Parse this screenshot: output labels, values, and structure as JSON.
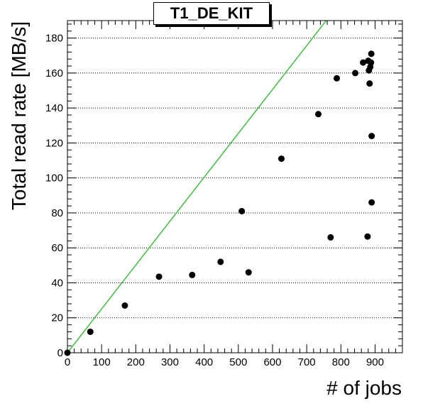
{
  "chart_data": {
    "type": "scatter",
    "title": "T1_DE_KIT",
    "xlabel": "# of jobs",
    "ylabel": "Total read rate [MB/s]",
    "xlim": [
      0,
      980
    ],
    "ylim": [
      0,
      190
    ],
    "x_ticks": [
      0,
      100,
      200,
      300,
      400,
      500,
      600,
      700,
      800,
      900
    ],
    "y_ticks": [
      0,
      20,
      40,
      60,
      80,
      100,
      120,
      140,
      160,
      180
    ],
    "grid": "horizontal dotted",
    "reference_line": {
      "from": [
        0,
        0
      ],
      "to": [
        757,
        190
      ],
      "color": "#44bb44"
    },
    "point_color": "#000000",
    "points": [
      {
        "x": 0,
        "y": 0
      },
      {
        "x": 67,
        "y": 12
      },
      {
        "x": 168,
        "y": 27
      },
      {
        "x": 268,
        "y": 43.5
      },
      {
        "x": 365,
        "y": 44.5
      },
      {
        "x": 448,
        "y": 52
      },
      {
        "x": 510,
        "y": 81
      },
      {
        "x": 530,
        "y": 46
      },
      {
        "x": 626,
        "y": 111
      },
      {
        "x": 734,
        "y": 136.5
      },
      {
        "x": 770,
        "y": 66
      },
      {
        "x": 788,
        "y": 157
      },
      {
        "x": 842,
        "y": 160
      },
      {
        "x": 865,
        "y": 166
      },
      {
        "x": 878,
        "y": 66.5
      },
      {
        "x": 880,
        "y": 167
      },
      {
        "x": 882,
        "y": 161.5
      },
      {
        "x": 884,
        "y": 154
      },
      {
        "x": 886,
        "y": 163.5
      },
      {
        "x": 888,
        "y": 166
      },
      {
        "x": 889,
        "y": 171
      },
      {
        "x": 890,
        "y": 124
      },
      {
        "x": 890,
        "y": 86
      }
    ]
  }
}
